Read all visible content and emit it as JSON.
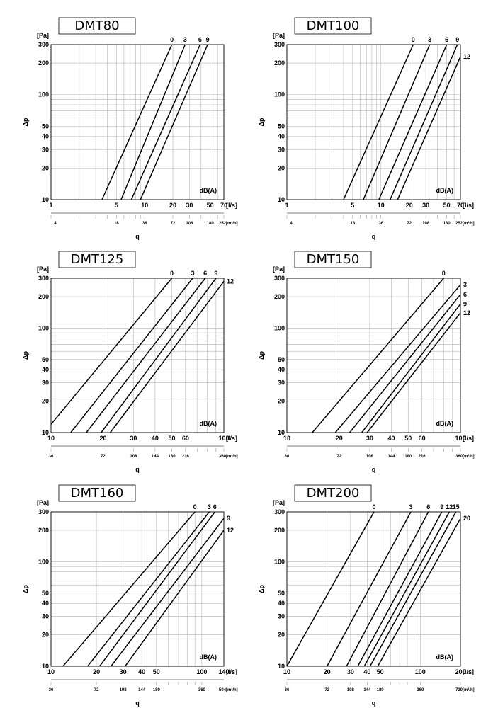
{
  "chart_data": [
    {
      "type": "line",
      "title": "DMT80",
      "ylabel": "Δp",
      "y_unit": "[Pa]",
      "x_unit": "[l/s]",
      "xlabel": "q",
      "m3h_unit": "[m³/h]",
      "y_scale": "log",
      "x_scale": "log",
      "xlim": [
        1,
        70
      ],
      "ylim": [
        10,
        300
      ],
      "grid": true,
      "annotation": "dB(A)",
      "y_ticks": [
        10,
        20,
        30,
        40,
        50,
        100,
        200,
        300
      ],
      "x_ticks": [
        1,
        5,
        10,
        20,
        30,
        50,
        70
      ],
      "m3h_ticks": [
        4,
        18,
        36,
        72,
        108,
        180,
        252
      ],
      "series": [
        {
          "name": "0",
          "x": [
            3.5,
            19.5
          ],
          "y": [
            10,
            300
          ]
        },
        {
          "name": "3",
          "x": [
            5.6,
            27.0
          ],
          "y": [
            10,
            300
          ]
        },
        {
          "name": "6",
          "x": [
            7.2,
            39.0
          ],
          "y": [
            10,
            300
          ]
        },
        {
          "name": "9",
          "x": [
            9.0,
            47.0
          ],
          "y": [
            10,
            300
          ]
        }
      ]
    },
    {
      "type": "line",
      "title": "DMT100",
      "ylabel": "Δp",
      "y_unit": "[Pa]",
      "x_unit": "[l/s]",
      "xlabel": "q",
      "m3h_unit": "[m³/h]",
      "y_scale": "log",
      "x_scale": "log",
      "xlim": [
        1,
        70
      ],
      "ylim": [
        10,
        300
      ],
      "grid": true,
      "annotation": "dB(A)",
      "y_ticks": [
        10,
        20,
        30,
        40,
        50,
        100,
        200,
        300
      ],
      "x_ticks": [
        1,
        5,
        10,
        20,
        30,
        50,
        70
      ],
      "m3h_ticks": [
        4,
        18,
        36,
        72,
        108,
        180,
        252
      ],
      "series": [
        {
          "name": "0",
          "x": [
            4.0,
            22.0
          ],
          "y": [
            10,
            300
          ]
        },
        {
          "name": "3",
          "x": [
            6.5,
            33.0
          ],
          "y": [
            10,
            300
          ]
        },
        {
          "name": "6",
          "x": [
            9.5,
            50.0
          ],
          "y": [
            10,
            300
          ]
        },
        {
          "name": "9",
          "x": [
            12.5,
            65.0
          ],
          "y": [
            10,
            300
          ]
        },
        {
          "name": "12",
          "x": [
            15.0,
            70.0
          ],
          "y": [
            10,
            230
          ]
        }
      ]
    },
    {
      "type": "line",
      "title": "DMT125",
      "ylabel": "Δp",
      "y_unit": "[Pa]",
      "x_unit": "[l/s]",
      "xlabel": "q",
      "m3h_unit": "[m³/h]",
      "y_scale": "log",
      "x_scale": "log",
      "xlim": [
        10,
        100
      ],
      "ylim": [
        10,
        300
      ],
      "grid": true,
      "annotation": "dB(A)",
      "y_ticks": [
        10,
        20,
        30,
        40,
        50,
        100,
        200,
        300
      ],
      "x_ticks": [
        10,
        20,
        30,
        40,
        50,
        60,
        100
      ],
      "m3h_ticks": [
        36,
        72,
        108,
        144,
        180,
        216,
        360
      ],
      "series": [
        {
          "name": "0",
          "x": [
            10,
            50
          ],
          "y": [
            12,
            300
          ]
        },
        {
          "name": "3",
          "x": [
            13,
            66
          ],
          "y": [
            10,
            300
          ]
        },
        {
          "name": "6",
          "x": [
            16,
            78
          ],
          "y": [
            10,
            300
          ]
        },
        {
          "name": "9",
          "x": [
            19.5,
            90
          ],
          "y": [
            10,
            300
          ]
        },
        {
          "name": "12",
          "x": [
            22,
            100
          ],
          "y": [
            10,
            280
          ]
        }
      ]
    },
    {
      "type": "line",
      "title": "DMT150",
      "ylabel": "Δp",
      "y_unit": "[Pa]",
      "x_unit": "[l/s]",
      "xlabel": "q",
      "m3h_unit": "[m³/h]",
      "y_scale": "log",
      "x_scale": "log",
      "xlim": [
        10,
        100
      ],
      "ylim": [
        10,
        300
      ],
      "grid": true,
      "annotation": "dB(A)",
      "y_ticks": [
        10,
        20,
        30,
        40,
        50,
        100,
        200,
        300
      ],
      "x_ticks": [
        10,
        20,
        30,
        40,
        50,
        60,
        100
      ],
      "m3h_ticks": [
        36,
        72,
        108,
        144,
        180,
        216,
        360
      ],
      "series": [
        {
          "name": "0",
          "x": [
            14,
            80
          ],
          "y": [
            10,
            300
          ]
        },
        {
          "name": "3",
          "x": [
            19,
            100
          ],
          "y": [
            10,
            260
          ]
        },
        {
          "name": "6",
          "x": [
            23,
            100
          ],
          "y": [
            10,
            210
          ]
        },
        {
          "name": "9",
          "x": [
            27,
            100
          ],
          "y": [
            10,
            170
          ]
        },
        {
          "name": "12",
          "x": [
            29,
            100
          ],
          "y": [
            10,
            140
          ]
        }
      ]
    },
    {
      "type": "line",
      "title": "DMT160",
      "ylabel": "Δp",
      "y_unit": "[Pa]",
      "x_unit": "[l/s]",
      "xlabel": "q",
      "m3h_unit": "[m³/h]",
      "y_scale": "log",
      "x_scale": "log",
      "xlim": [
        10,
        140
      ],
      "ylim": [
        10,
        300
      ],
      "grid": true,
      "annotation": "dB(A)",
      "y_ticks": [
        10,
        20,
        30,
        40,
        50,
        100,
        200,
        300
      ],
      "x_ticks": [
        10,
        20,
        30,
        40,
        50,
        100,
        140
      ],
      "m3h_ticks": [
        36,
        72,
        108,
        144,
        180,
        360,
        504
      ],
      "series": [
        {
          "name": "0",
          "x": [
            12,
            90
          ],
          "y": [
            10,
            300
          ]
        },
        {
          "name": "3",
          "x": [
            17.5,
            112
          ],
          "y": [
            10,
            300
          ]
        },
        {
          "name": "6",
          "x": [
            21,
            122
          ],
          "y": [
            10,
            300
          ]
        },
        {
          "name": "9",
          "x": [
            25,
            140
          ],
          "y": [
            10,
            260
          ]
        },
        {
          "name": "12",
          "x": [
            31,
            140
          ],
          "y": [
            10,
            200
          ]
        }
      ]
    },
    {
      "type": "line",
      "title": "DMT200",
      "ylabel": "Δp",
      "y_unit": "[Pa]",
      "x_unit": "[l/s]",
      "xlabel": "q",
      "m3h_unit": "[m³/h]",
      "y_scale": "log",
      "x_scale": "log",
      "xlim": [
        10,
        200
      ],
      "ylim": [
        10,
        300
      ],
      "grid": true,
      "annotation": "dB(A)",
      "y_ticks": [
        10,
        20,
        30,
        40,
        50,
        100,
        200,
        300
      ],
      "x_ticks": [
        10,
        20,
        30,
        40,
        50,
        100,
        200
      ],
      "m3h_ticks": [
        36,
        72,
        108,
        144,
        180,
        360,
        720
      ],
      "series": [
        {
          "name": "0",
          "x": [
            10,
            45
          ],
          "y": [
            10,
            300
          ]
        },
        {
          "name": "3",
          "x": [
            20,
            85
          ],
          "y": [
            10,
            300
          ]
        },
        {
          "name": "6",
          "x": [
            28,
            115
          ],
          "y": [
            10,
            300
          ]
        },
        {
          "name": "9",
          "x": [
            34,
            145
          ],
          "y": [
            10,
            300
          ]
        },
        {
          "name": "12",
          "x": [
            38,
            165
          ],
          "y": [
            10,
            300
          ]
        },
        {
          "name": "15",
          "x": [
            42,
            185
          ],
          "y": [
            10,
            300
          ]
        },
        {
          "name": "20",
          "x": [
            48,
            200
          ],
          "y": [
            10,
            260
          ]
        }
      ]
    }
  ]
}
